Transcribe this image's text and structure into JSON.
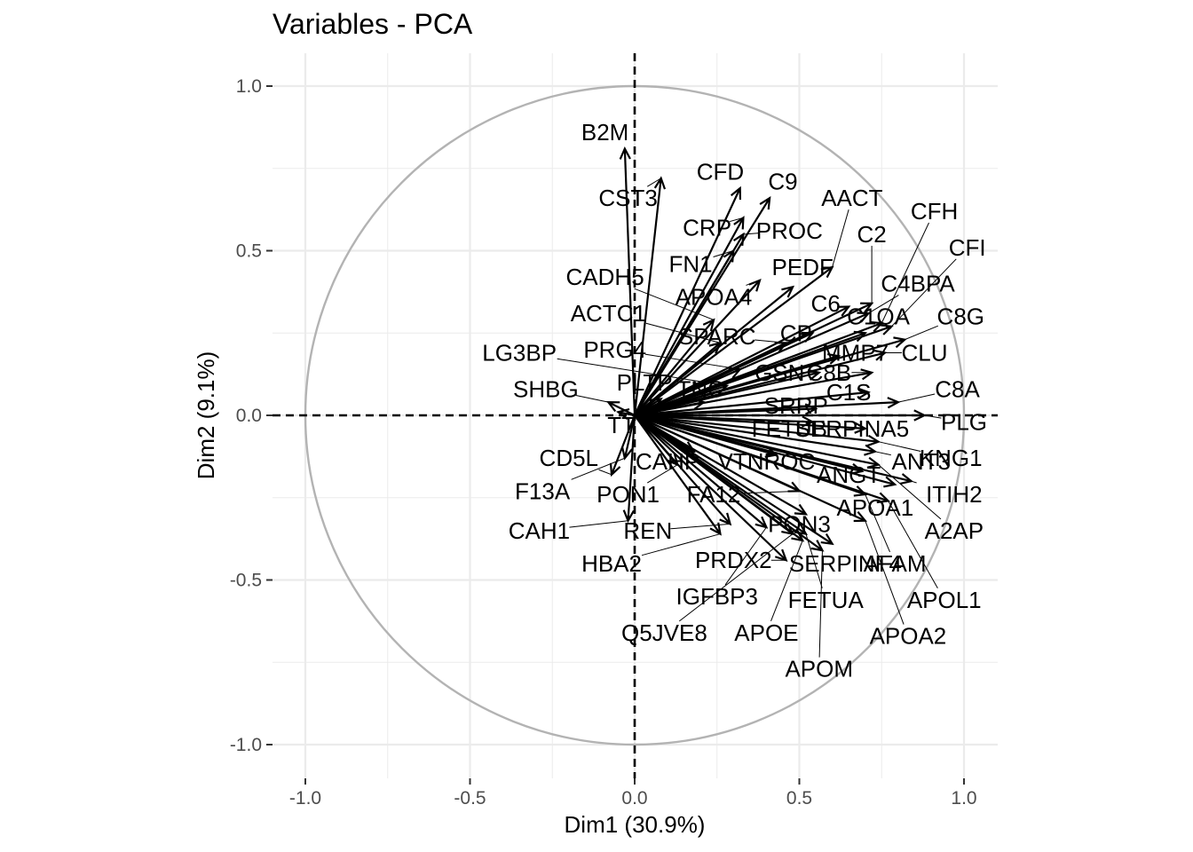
{
  "chart_data": {
    "type": "scatter",
    "subtype": "pca-variable-correlation-circle",
    "title": "Variables - PCA",
    "xlabel": "Dim1 (30.9%)",
    "ylabel": "Dim2 (9.1%)",
    "xlim": [
      -1.0,
      1.0
    ],
    "ylim": [
      -1.0,
      1.0
    ],
    "xticks": [
      "-1.0",
      "-0.5",
      "0.0",
      "0.5",
      "1.0"
    ],
    "yticks": [
      "-1.0",
      "-0.5",
      "0.0",
      "0.5",
      "1.0"
    ],
    "grid": true,
    "unit_circle": true,
    "colors": {
      "arrow": "#000000",
      "circle": "#b3b3b3",
      "grid": "#ebebeb",
      "tick_label": "#4d4d4d"
    },
    "variables": [
      {
        "name": "B2M",
        "x": -0.03,
        "y": 0.81,
        "lx": -0.09,
        "ly": 0.86
      },
      {
        "name": "CST3",
        "x": 0.08,
        "y": 0.72,
        "lx": -0.02,
        "ly": 0.66
      },
      {
        "name": "CFD",
        "x": 0.32,
        "y": 0.69,
        "lx": 0.26,
        "ly": 0.74
      },
      {
        "name": "C9",
        "x": 0.41,
        "y": 0.66,
        "lx": 0.45,
        "ly": 0.71
      },
      {
        "name": "CRP",
        "x": 0.33,
        "y": 0.6,
        "lx": 0.22,
        "ly": 0.57
      },
      {
        "name": "PROC",
        "x": 0.33,
        "y": 0.55,
        "lx": 0.47,
        "ly": 0.56
      },
      {
        "name": "AACT",
        "x": 0.6,
        "y": 0.45,
        "lx": 0.66,
        "ly": 0.66
      },
      {
        "name": "CFH",
        "x": 0.75,
        "y": 0.28,
        "lx": 0.91,
        "ly": 0.62
      },
      {
        "name": "C2",
        "x": 0.72,
        "y": 0.34,
        "lx": 0.72,
        "ly": 0.55
      },
      {
        "name": "CFI",
        "x": 0.78,
        "y": 0.27,
        "lx": 1.01,
        "ly": 0.51
      },
      {
        "name": "FN1",
        "x": 0.3,
        "y": 0.5,
        "lx": 0.17,
        "ly": 0.46
      },
      {
        "name": "PEDF",
        "x": 0.48,
        "y": 0.39,
        "lx": 0.51,
        "ly": 0.45
      },
      {
        "name": "CADH5",
        "x": 0.24,
        "y": 0.29,
        "lx": -0.09,
        "ly": 0.42
      },
      {
        "name": "C4BPA",
        "x": 0.71,
        "y": 0.31,
        "lx": 0.86,
        "ly": 0.4
      },
      {
        "name": "APOA4",
        "x": 0.38,
        "y": 0.41,
        "lx": 0.24,
        "ly": 0.36
      },
      {
        "name": "C6",
        "x": 0.65,
        "y": 0.33,
        "lx": 0.58,
        "ly": 0.34
      },
      {
        "name": "C1QA",
        "x": 0.7,
        "y": 0.25,
        "lx": 0.74,
        "ly": 0.3
      },
      {
        "name": "C8G",
        "x": 0.82,
        "y": 0.23,
        "lx": 0.99,
        "ly": 0.3
      },
      {
        "name": "ACTC1",
        "x": 0.26,
        "y": 0.22,
        "lx": -0.08,
        "ly": 0.31
      },
      {
        "name": "SPARC",
        "x": 0.46,
        "y": 0.22,
        "lx": 0.25,
        "ly": 0.24
      },
      {
        "name": "CP",
        "x": 0.54,
        "y": 0.25,
        "lx": 0.49,
        "ly": 0.25
      },
      {
        "name": "PRG4",
        "x": 0.32,
        "y": 0.14,
        "lx": -0.06,
        "ly": 0.2
      },
      {
        "name": "LG3BP",
        "x": 0.28,
        "y": 0.09,
        "lx": -0.35,
        "ly": 0.19
      },
      {
        "name": "MMP7",
        "x": 0.62,
        "y": 0.18,
        "lx": 0.67,
        "ly": 0.19
      },
      {
        "name": "CLU",
        "x": 0.76,
        "y": 0.19,
        "lx": 0.88,
        "ly": 0.19
      },
      {
        "name": "GSN",
        "x": 0.56,
        "y": 0.13,
        "lx": 0.44,
        "ly": 0.13
      },
      {
        "name": "C8B",
        "x": 0.72,
        "y": 0.13,
        "lx": 0.59,
        "ly": 0.13
      },
      {
        "name": "PLTP",
        "x": 0.08,
        "y": 0.05,
        "lx": 0.03,
        "ly": 0.1
      },
      {
        "name": "TNC",
        "x": 0.21,
        "y": 0.04,
        "lx": 0.2,
        "ly": 0.08
      },
      {
        "name": "SHBG",
        "x": -0.08,
        "y": 0.04,
        "lx": -0.27,
        "ly": 0.08
      },
      {
        "name": "C1S",
        "x": 0.71,
        "y": 0.07,
        "lx": 0.65,
        "ly": 0.07
      },
      {
        "name": "C8A",
        "x": 0.8,
        "y": 0.04,
        "lx": 0.98,
        "ly": 0.08
      },
      {
        "name": "SRRP",
        "x": 0.55,
        "y": 0.02,
        "lx": 0.49,
        "ly": 0.03
      },
      {
        "name": "PLG",
        "x": 0.88,
        "y": 0.0,
        "lx": 1.0,
        "ly": -0.02
      },
      {
        "name": "TT",
        "x": -0.05,
        "y": 0.01,
        "lx": -0.04,
        "ly": -0.03
      },
      {
        "name": "FETUB",
        "x": 0.54,
        "y": -0.02,
        "lx": 0.47,
        "ly": -0.04
      },
      {
        "name": "SERPINA5",
        "x": 0.7,
        "y": -0.04,
        "lx": 0.66,
        "ly": -0.04
      },
      {
        "name": "KNG1",
        "x": 0.74,
        "y": -0.08,
        "lx": 0.96,
        "ly": -0.13
      },
      {
        "name": "ANT3",
        "x": 0.73,
        "y": -0.11,
        "lx": 0.87,
        "ly": -0.14
      },
      {
        "name": "CD5L",
        "x": -0.07,
        "y": -0.18,
        "lx": -0.2,
        "ly": -0.13
      },
      {
        "name": "CAHP",
        "x": 0.18,
        "y": -0.11,
        "lx": 0.1,
        "ly": -0.14
      },
      {
        "name": "VTNROC",
        "x": 0.43,
        "y": -0.12,
        "lx": 0.4,
        "ly": -0.14
      },
      {
        "name": "ANGT",
        "x": 0.69,
        "y": -0.17,
        "lx": 0.65,
        "ly": -0.18
      },
      {
        "name": "ITIH2",
        "x": 0.84,
        "y": -0.2,
        "lx": 0.97,
        "ly": -0.24
      },
      {
        "name": "F13A",
        "x": -0.03,
        "y": -0.13,
        "lx": -0.28,
        "ly": -0.23
      },
      {
        "name": "PON1",
        "x": 0.13,
        "y": -0.15,
        "lx": -0.02,
        "ly": -0.24
      },
      {
        "name": "FA12",
        "x": 0.5,
        "y": -0.23,
        "lx": 0.24,
        "ly": -0.24
      },
      {
        "name": "APOA1",
        "x": 0.79,
        "y": -0.21,
        "lx": 0.73,
        "ly": -0.28
      },
      {
        "name": "A2AP",
        "x": 0.74,
        "y": -0.15,
        "lx": 0.97,
        "ly": -0.35
      },
      {
        "name": "CAH1",
        "x": -0.02,
        "y": -0.32,
        "lx": -0.29,
        "ly": -0.35
      },
      {
        "name": "REN",
        "x": 0.29,
        "y": -0.33,
        "lx": 0.04,
        "ly": -0.35
      },
      {
        "name": "PON3",
        "x": 0.52,
        "y": -0.3,
        "lx": 0.5,
        "ly": -0.33
      },
      {
        "name": "HBA2",
        "x": 0.26,
        "y": -0.36,
        "lx": -0.07,
        "ly": -0.45
      },
      {
        "name": "PRDX2",
        "x": 0.46,
        "y": -0.44,
        "lx": 0.3,
        "ly": -0.44
      },
      {
        "name": "SERPINF4",
        "x": 0.6,
        "y": -0.39,
        "lx": 0.64,
        "ly": -0.45
      },
      {
        "name": "AFAM",
        "x": 0.7,
        "y": -0.24,
        "lx": 0.79,
        "ly": -0.45
      },
      {
        "name": "IGFBP3",
        "x": 0.4,
        "y": -0.34,
        "lx": 0.25,
        "ly": -0.55
      },
      {
        "name": "FETUA",
        "x": 0.52,
        "y": -0.36,
        "lx": 0.58,
        "ly": -0.56
      },
      {
        "name": "APOL1",
        "x": 0.77,
        "y": -0.26,
        "lx": 0.94,
        "ly": -0.56
      },
      {
        "name": "Q5JVE8",
        "x": 0.48,
        "y": -0.36,
        "lx": 0.09,
        "ly": -0.66
      },
      {
        "name": "APOE",
        "x": 0.51,
        "y": -0.38,
        "lx": 0.4,
        "ly": -0.66
      },
      {
        "name": "APOA2",
        "x": 0.7,
        "y": -0.32,
        "lx": 0.83,
        "ly": -0.67
      },
      {
        "name": "APOM",
        "x": 0.57,
        "y": -0.41,
        "lx": 0.56,
        "ly": -0.77
      }
    ]
  }
}
